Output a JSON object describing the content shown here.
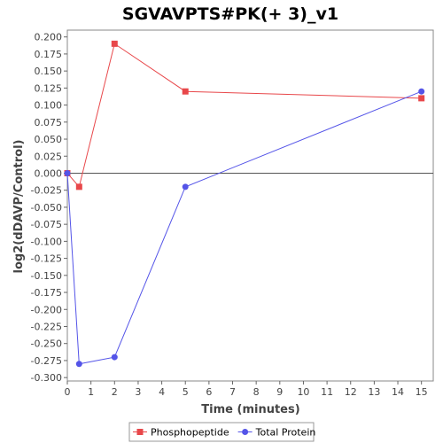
{
  "chart_data": {
    "type": "line",
    "title": "SGVAVPTS#PK(+ 3)_v1",
    "xlabel": "Time (minutes)",
    "ylabel": "log2(dDAVP/Control)",
    "xlim": [
      0,
      15.5
    ],
    "ylim": [
      -0.305,
      0.21
    ],
    "xticks": [
      0,
      1,
      2,
      3,
      4,
      5,
      6,
      7,
      8,
      9,
      10,
      11,
      12,
      13,
      14,
      15
    ],
    "yticks": [
      "0.200",
      "0.175",
      "0.150",
      "0.125",
      "0.100",
      "0.075",
      "0.050",
      "0.025",
      "0.000",
      "-0.025",
      "-0.050",
      "-0.075",
      "-0.100",
      "-0.125",
      "-0.150",
      "-0.175",
      "-0.200",
      "-0.225",
      "-0.250",
      "-0.275",
      "-0.300"
    ],
    "zero_line": true,
    "grid": false,
    "legend_position": "bottom",
    "series": [
      {
        "name": "Phosphopeptide",
        "marker": "square",
        "color": "#e8474a",
        "points": [
          {
            "x": 0,
            "y": 0.0
          },
          {
            "x": 0.5,
            "y": -0.02
          },
          {
            "x": 2,
            "y": 0.19
          },
          {
            "x": 5,
            "y": 0.12
          },
          {
            "x": 15,
            "y": 0.11
          }
        ]
      },
      {
        "name": "Total Protein",
        "marker": "circle",
        "color": "#5454e8",
        "points": [
          {
            "x": 0,
            "y": 0.0
          },
          {
            "x": 0.5,
            "y": -0.28
          },
          {
            "x": 2,
            "y": -0.27
          },
          {
            "x": 5,
            "y": -0.02
          },
          {
            "x": 15,
            "y": 0.12
          }
        ]
      }
    ]
  }
}
